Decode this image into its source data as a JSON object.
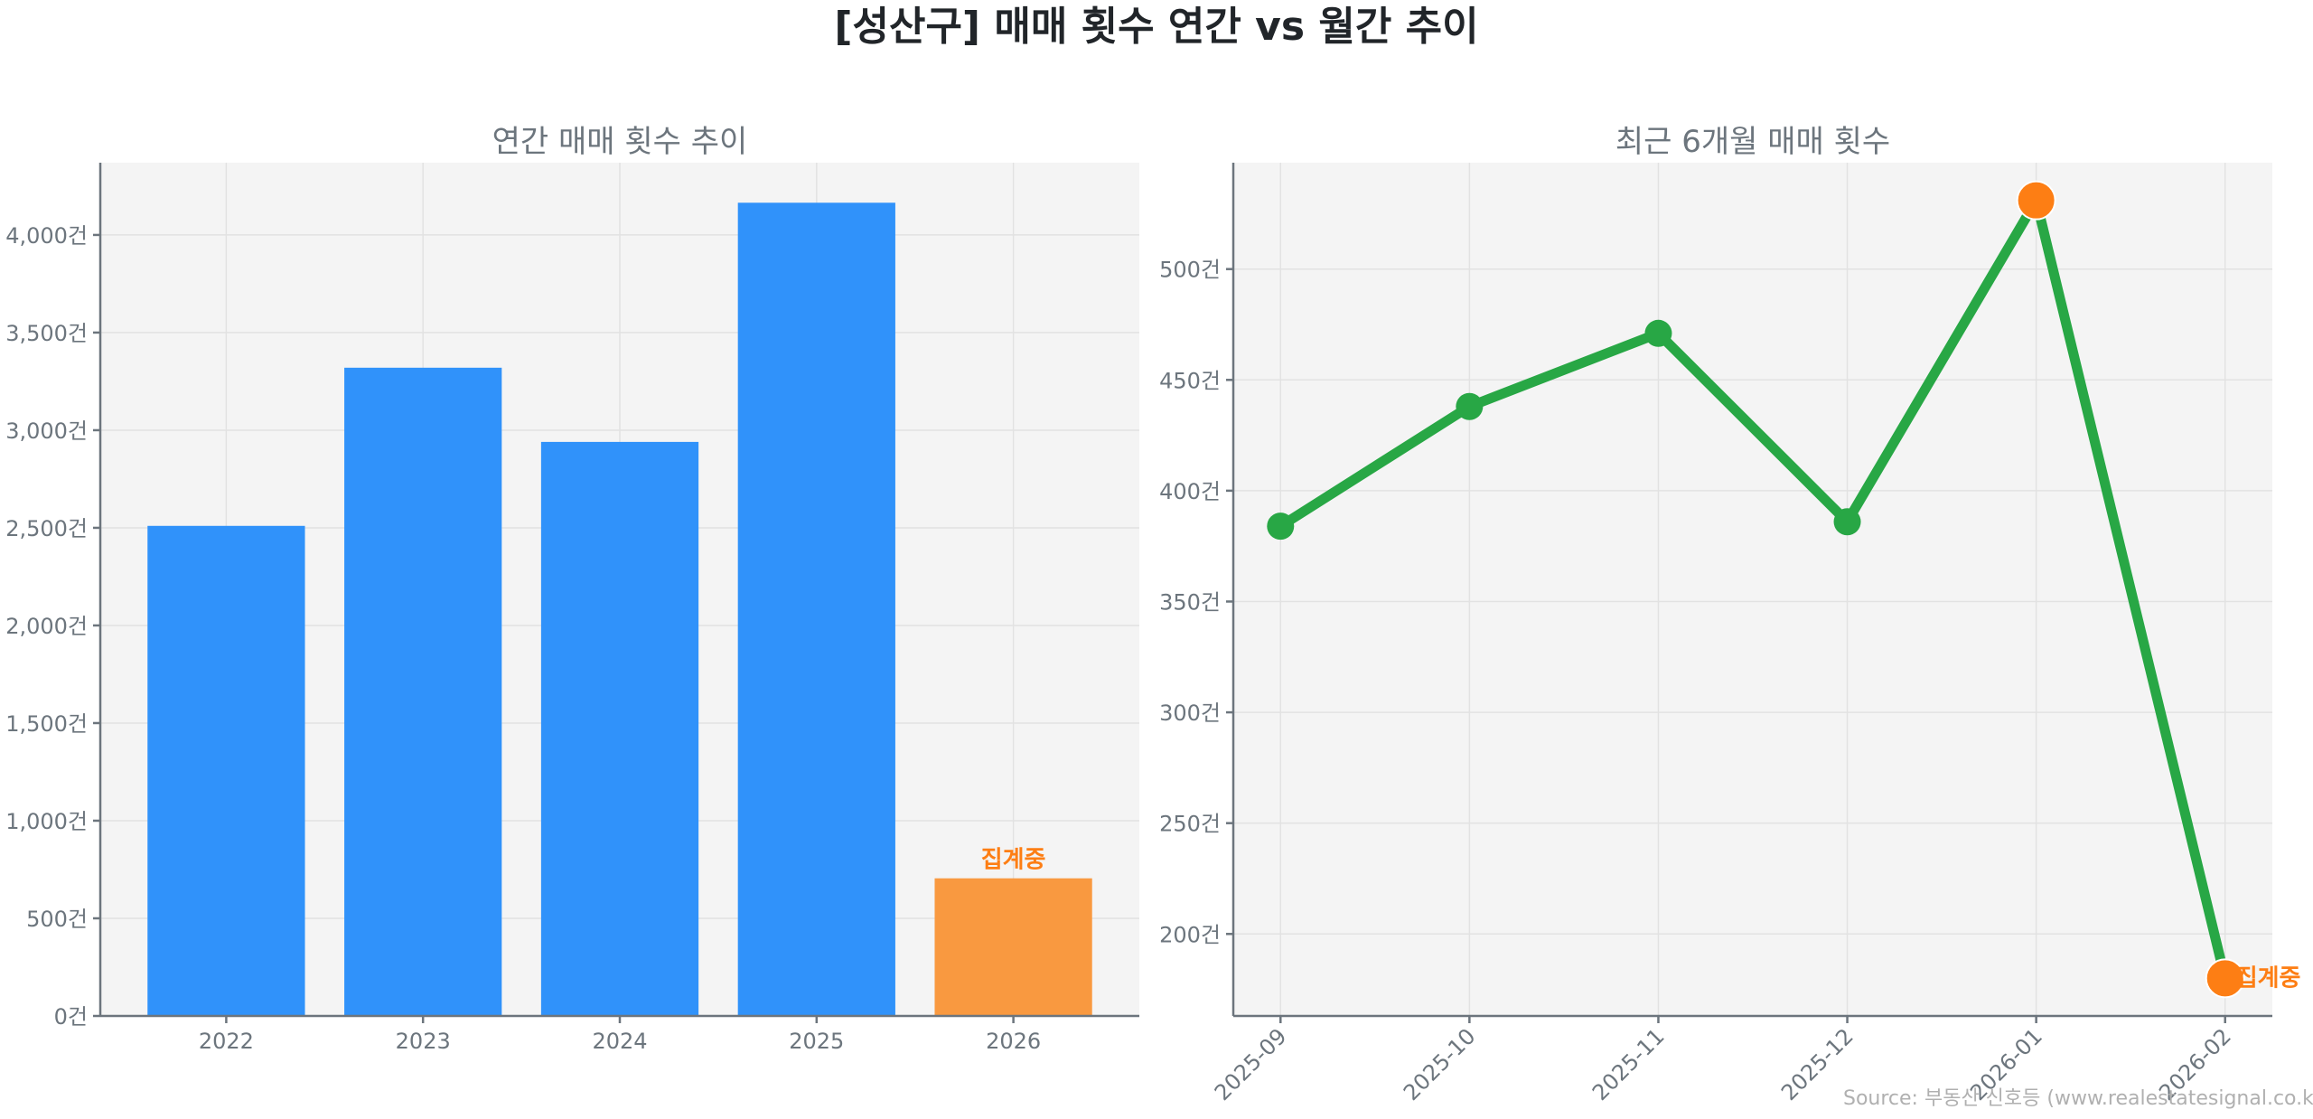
{
  "title": "[성산구] 매매 횟수 연간 vs 월간 추이",
  "source": "Source: 부동산 신호등 (www.realestatesignal.co.kr)",
  "colors": {
    "bar": "#3092fa",
    "bar_partial": "#f99940",
    "line": "#28a745",
    "marker_highlight": "#fd7e14",
    "plot_bg": "#f4f4f4",
    "text_muted": "#6c757d",
    "annotation": "#fd7e14"
  },
  "chart_data": [
    {
      "type": "bar",
      "title": "연간 매매 횟수 추이",
      "categories": [
        "2022",
        "2023",
        "2024",
        "2025",
        "2026"
      ],
      "values": [
        2510,
        3320,
        2940,
        4165,
        705
      ],
      "partial_flags": [
        false,
        false,
        false,
        false,
        true
      ],
      "annotation": "집계중",
      "ylim": [
        0,
        4370
      ],
      "yticks": [
        0,
        500,
        1000,
        1500,
        2000,
        2500,
        3000,
        3500,
        4000
      ],
      "ytick_labels": [
        "0건",
        "500건",
        "1,000건",
        "1,500건",
        "2,000건",
        "2,500건",
        "3,000건",
        "3,500건",
        "4,000건"
      ],
      "grid": true
    },
    {
      "type": "line",
      "title": "최근 6개월 매매 횟수",
      "categories": [
        "2025-09",
        "2025-10",
        "2025-11",
        "2025-12",
        "2026-01",
        "2026-02"
      ],
      "values": [
        384,
        438,
        471,
        386,
        531,
        180
      ],
      "highlight_points": [
        "2026-01",
        "2026-02"
      ],
      "annotation": "집계중",
      "ylim": [
        163,
        548
      ],
      "yticks": [
        200,
        250,
        300,
        350,
        400,
        450,
        500
      ],
      "ytick_labels": [
        "200건",
        "250건",
        "300건",
        "350건",
        "400건",
        "450건",
        "500건"
      ],
      "grid": true
    }
  ]
}
